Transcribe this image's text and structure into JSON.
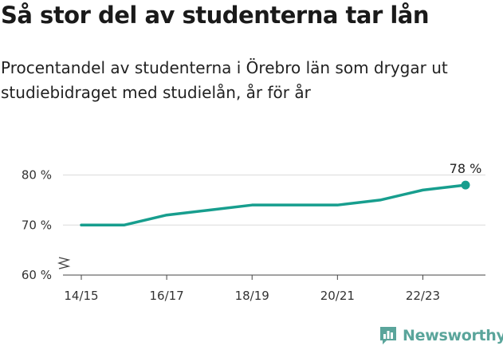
{
  "title": "Så stor del av studenterna tar lån",
  "subtitle": "Procentandel av studenterna i Örebro län som drygar ut studiebidraget med studielån, år för år",
  "brand": {
    "name": "Newsworthy",
    "icon": "bar-chart-logo-icon"
  },
  "chart_data": {
    "type": "line",
    "x": [
      "14/15",
      "15/16",
      "16/17",
      "17/18",
      "18/19",
      "19/20",
      "20/21",
      "21/22",
      "22/23",
      "23/24"
    ],
    "series": [
      {
        "values": [
          70,
          70,
          72,
          73,
          74,
          74,
          74,
          75,
          77,
          78
        ]
      }
    ],
    "x_tick_labels": [
      "14/15",
      "16/17",
      "18/19",
      "20/21",
      "22/23"
    ],
    "y_tick_labels": [
      "60 %",
      "70 %",
      "80 %"
    ],
    "y_ticks": [
      60,
      70,
      80
    ],
    "ylim": [
      60,
      82
    ],
    "axis_break": true,
    "end_label": "78 %",
    "grid": true,
    "colors": {
      "line": "#179e8e",
      "grid": "#dcdcdc",
      "axis": "#444444",
      "brand": "#5aa59b"
    }
  }
}
